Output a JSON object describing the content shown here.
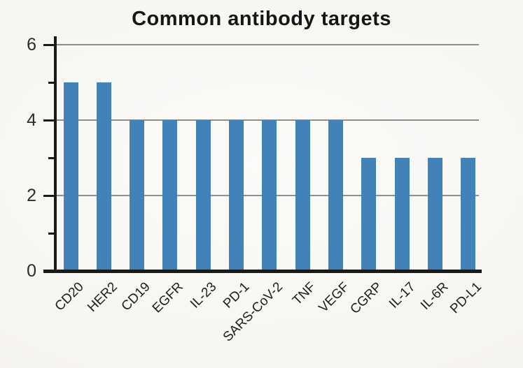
{
  "chart_data": {
    "type": "bar",
    "title": "Common antibody targets",
    "categories": [
      "CD20",
      "HER2",
      "CD19",
      "EGFR",
      "IL-23",
      "PD-1",
      "SARS-CoV-2",
      "TNF",
      "VEGF",
      "CGRP",
      "IL-17",
      "IL-6R",
      "PD-L1"
    ],
    "values": [
      5,
      5,
      4,
      4,
      4,
      4,
      4,
      4,
      4,
      3,
      3,
      3,
      3
    ],
    "xlabel": "",
    "ylabel": "",
    "ylim": [
      0,
      6
    ],
    "yticks_major": [
      0,
      2,
      4,
      6
    ],
    "yticks_minor": [
      1,
      3,
      5
    ],
    "gridline_values": [
      2,
      4,
      6
    ],
    "grid": "horizontal",
    "legend": "none",
    "bar_color": "#4183b9",
    "axis_color": "#1a1a1a",
    "grid_color": "#8e8e8e",
    "background_color": "#f5f3ef"
  }
}
